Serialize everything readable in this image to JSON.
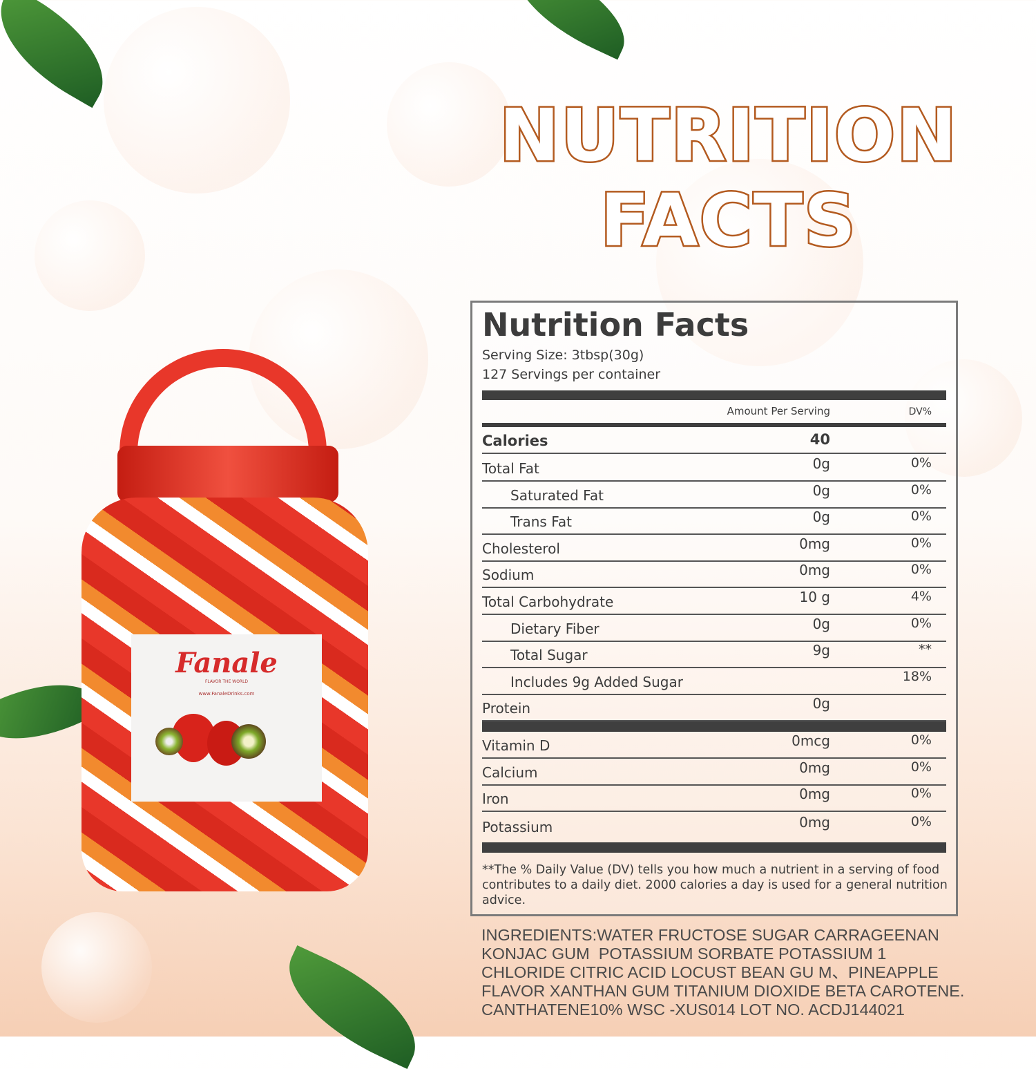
{
  "heading": {
    "line1": "NUTRITION",
    "line2": "FACTS"
  },
  "panel": {
    "title": "Nutrition Facts",
    "serving_size": "Serving Size:  3tbsp(30g)",
    "servings": "127 Servings per container",
    "col_amount": "Amount Per Serving",
    "col_dv": "DV%",
    "calories_label": "Calories",
    "calories_value": "40",
    "rows": [
      {
        "label": "Total Fat",
        "amount": "0g",
        "dv": "0%"
      },
      {
        "label": "Saturated Fat",
        "amount": "0g",
        "dv": "0%"
      },
      {
        "label": "Trans Fat",
        "amount": "0g",
        "dv": "0%"
      },
      {
        "label": "Cholesterol",
        "amount": "0mg",
        "dv": "0%"
      },
      {
        "label": "Sodium",
        "amount": "0mg",
        "dv": "0%"
      },
      {
        "label": "Total Carbohydrate",
        "amount": "10 g",
        "dv": "4%"
      },
      {
        "label": "Dietary Fiber",
        "amount": "0g",
        "dv": "0%"
      },
      {
        "label": "Total Sugar",
        "amount": "9g",
        "dv": "**"
      },
      {
        "label": "Includes 9g Added Sugar",
        "amount": "",
        "dv": "18%"
      },
      {
        "label": "Protein",
        "amount": "0g",
        "dv": ""
      }
    ],
    "vitamins": [
      {
        "label": "Vitamin D",
        "amount": "0mcg",
        "dv": "0%"
      },
      {
        "label": "Calcium",
        "amount": "0mg",
        "dv": "0%"
      },
      {
        "label": "Iron",
        "amount": "0mg",
        "dv": "0%"
      },
      {
        "label": "Potassium",
        "amount": "0mg",
        "dv": "0%"
      }
    ],
    "footnote": "**The % Daily Value (DV) tells you how much a nutrient in a serving of food contributes to a daily diet. 2000 calories a  day is used for a general nutrition advice."
  },
  "ingredients": "INGREDIENTS:WATER FRUCTOSE SUGAR CARRAGEENAN\nKONJAC GUM  POTASSIUM SORBATE POTASSIUM 1\nCHLORIDE CITRIC ACID LOCUST BEAN GU M、PINEAPPLE\nFLAVOR XANTHAN GUM TITANIUM DIOXIDE BETA CAROTENE.\nCANTHATENE10% WSC -XUS014 LOT NO. ACDJ144021",
  "product_label": {
    "brand": "Fanale",
    "tagline": "FLAVOR THE WORLD",
    "website": "www.FanaleDrinks.com"
  },
  "colors": {
    "title": "#b35a1f",
    "lid": "#e8372a",
    "text": "#3c3c3c"
  }
}
